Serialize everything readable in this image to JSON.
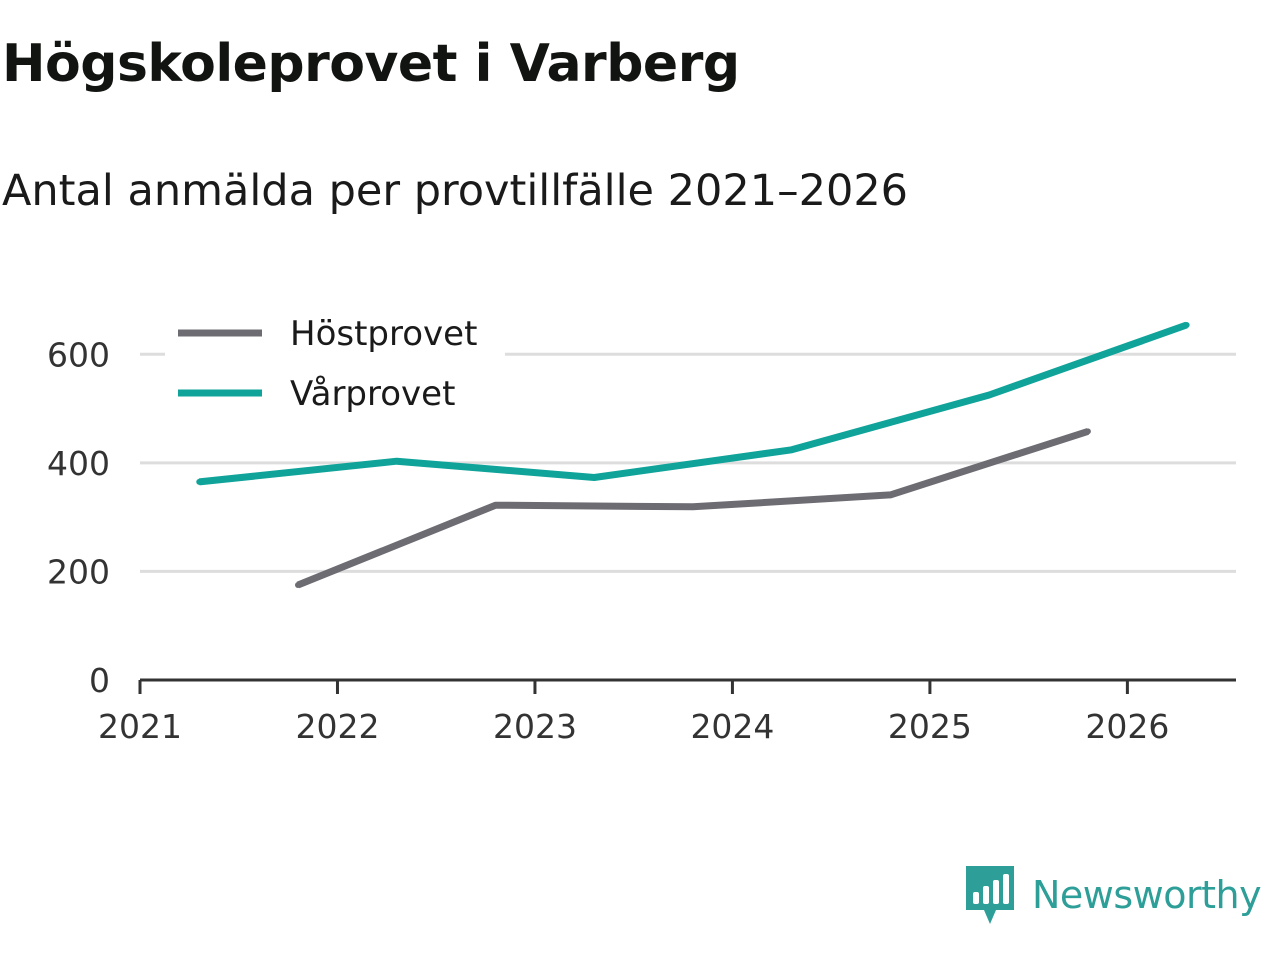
{
  "colors": {
    "hostprovet": "#6e6c73",
    "varprovet": "#0fa39a",
    "grid": "#dddddd",
    "axis": "#333333",
    "brand": "#2e9e98"
  },
  "brand": {
    "name": "Newsworthy",
    "icon": "newsworthy-logo-icon"
  },
  "chart_data": {
    "type": "line",
    "title": "Högskoleprovet i Varberg",
    "subtitle": "Antal anmälda per provtillfälle 2021–2026",
    "xlabel": "",
    "ylabel": "",
    "xlim": [
      2021,
      2026.55
    ],
    "ylim": [
      0,
      700
    ],
    "x_ticks": [
      2021,
      2022,
      2023,
      2024,
      2025,
      2026
    ],
    "x_tick_labels": [
      "2021",
      "2022",
      "2023",
      "2024",
      "2025",
      "2026"
    ],
    "y_ticks": [
      0,
      200,
      400,
      600
    ],
    "y_tick_labels": [
      "0",
      "200",
      "400",
      "600"
    ],
    "grid": true,
    "legend": "top-left",
    "series": [
      {
        "name": "Höstprovet",
        "color_key": "hostprovet",
        "x": [
          2021.8,
          2022.8,
          2023.8,
          2024.8,
          2025.8
        ],
        "values": [
          175,
          322,
          319,
          341,
          458
        ]
      },
      {
        "name": "Vårprovet",
        "color_key": "varprovet",
        "x": [
          2021.3,
          2022.3,
          2023.3,
          2024.3,
          2025.3,
          2026.3
        ],
        "values": [
          365,
          403,
          373,
          424,
          525,
          654
        ]
      }
    ]
  }
}
